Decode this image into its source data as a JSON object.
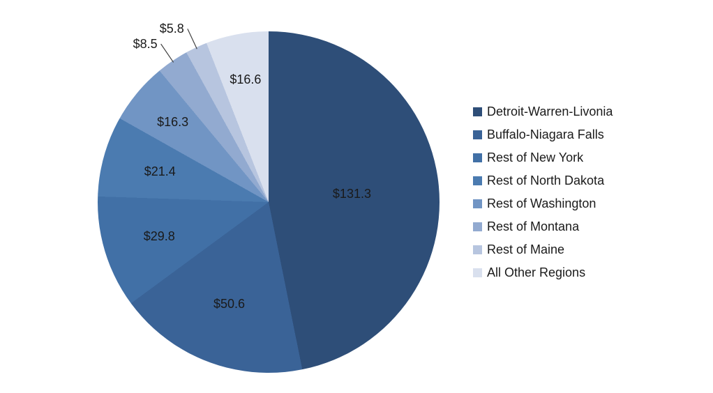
{
  "chart_data": {
    "type": "pie",
    "title": "",
    "categories": [
      "Detroit-Warren-Livonia",
      "Buffalo-Niagara Falls",
      "Rest of New York",
      "Rest of North Dakota",
      "Rest of Washington",
      "Rest of Montana",
      "Rest of Maine",
      "All Other Regions"
    ],
    "values": [
      131.3,
      50.6,
      29.8,
      21.4,
      16.3,
      8.5,
      5.8,
      16.6
    ],
    "value_prefix": "$",
    "colors": [
      "#2E4E78",
      "#3A6397",
      "#4170A6",
      "#4B7BB0",
      "#7195C4",
      "#92AAD0",
      "#B7C5DF",
      "#D9E0EE"
    ],
    "start_angle_deg": 0,
    "direction": "clockwise",
    "legend_position": "right",
    "background": "#FFFFFF",
    "label_placement": [
      {
        "mode": "inside",
        "r": 0.49
      },
      {
        "mode": "inside",
        "r": 0.64
      },
      {
        "mode": "inside",
        "r": 0.67
      },
      {
        "mode": "inside",
        "r": 0.66
      },
      {
        "mode": "inside",
        "r": 0.73
      },
      {
        "mode": "outside",
        "r": 1.12
      },
      {
        "mode": "outside",
        "r": 1.12
      },
      {
        "mode": "inside",
        "r": 0.73
      }
    ]
  }
}
